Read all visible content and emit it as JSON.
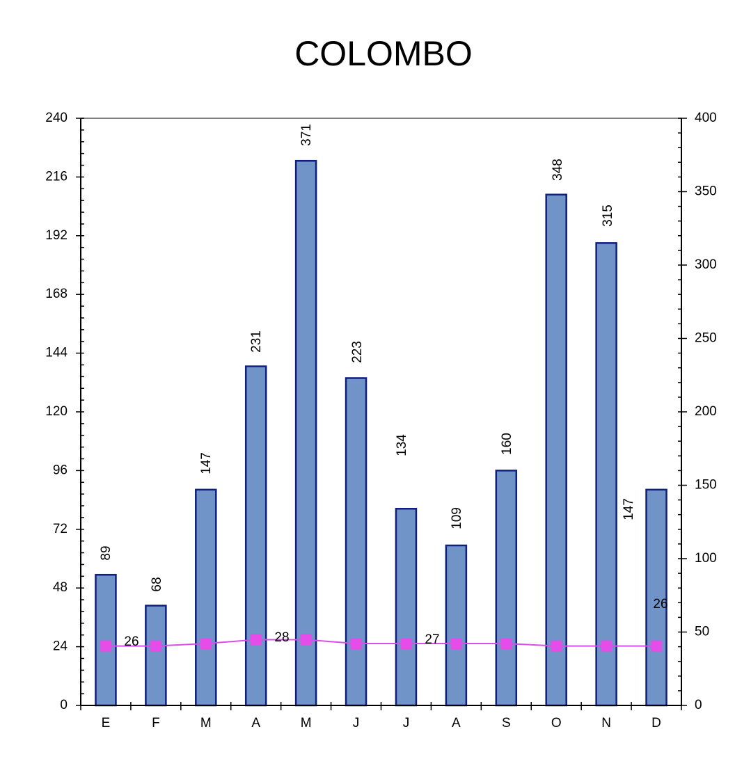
{
  "chart_data": {
    "type": "bar",
    "title": "COLOMBO",
    "categories": [
      "E",
      "F",
      "M",
      "A",
      "M",
      "J",
      "J",
      "A",
      "S",
      "O",
      "N",
      "D"
    ],
    "series": [
      {
        "type": "bar",
        "axis": "right",
        "values": [
          89,
          68,
          147,
          231,
          371,
          223,
          134,
          109,
          160,
          348,
          315,
          147
        ],
        "data_labels": [
          "89",
          "68",
          "147",
          "231",
          "371",
          "223",
          "134",
          "109",
          "160",
          "348",
          "315",
          "147"
        ]
      },
      {
        "type": "line",
        "axis": "left",
        "values": [
          26,
          26,
          27,
          28,
          28,
          27,
          27,
          27,
          27,
          26,
          26,
          26
        ],
        "data_labels": [
          "26",
          "28",
          "27",
          "26"
        ]
      }
    ],
    "left_axis": {
      "ylim": [
        0,
        240
      ],
      "ticks": [
        "0",
        "24",
        "48",
        "72",
        "96",
        "120",
        "144",
        "168",
        "192",
        "216",
        "240"
      ]
    },
    "right_axis": {
      "ylim": [
        0,
        400
      ],
      "ticks": [
        "0",
        "50",
        "100",
        "150",
        "200",
        "250",
        "300",
        "350",
        "400"
      ]
    },
    "colors": {
      "bar_fill": "#7093c8",
      "bar_stroke": "#0f1f80",
      "line": "#d94de8",
      "marker": "#e64ce8",
      "axis": "#000000",
      "top_border": "#808080"
    },
    "grid": false,
    "legend": "none"
  }
}
